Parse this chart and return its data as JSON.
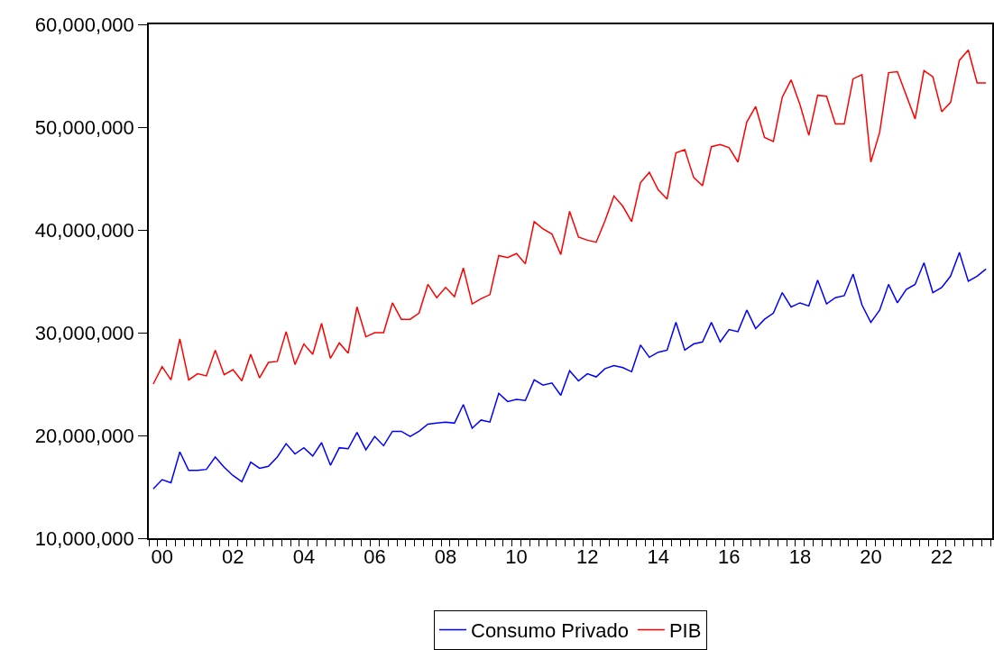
{
  "chart_data": {
    "type": "line",
    "legend": "bottom",
    "line_style": "solid",
    "categories": [
      null,
      "00",
      null,
      null,
      null,
      null,
      null,
      null,
      null,
      "02",
      null,
      null,
      null,
      null,
      null,
      null,
      null,
      "04",
      null,
      null,
      null,
      null,
      null,
      null,
      null,
      "06",
      null,
      null,
      null,
      null,
      null,
      null,
      null,
      "08",
      null,
      null,
      null,
      null,
      null,
      null,
      null,
      "10",
      null,
      null,
      null,
      null,
      null,
      null,
      null,
      "12",
      null,
      null,
      null,
      null,
      null,
      null,
      null,
      "14",
      null,
      null,
      null,
      null,
      null,
      null,
      null,
      "16",
      null,
      null,
      null,
      null,
      null,
      null,
      null,
      "18",
      null,
      null,
      null,
      null,
      null,
      null,
      null,
      "20",
      null,
      null,
      null,
      null,
      null,
      null,
      null,
      "22",
      null,
      null,
      null,
      null,
      null
    ],
    "series": [
      {
        "name": "Consumo Privado",
        "color": "#0000ff",
        "values": [
          14800000,
          15700000,
          15400000,
          18400000,
          16600000,
          16600000,
          16700000,
          17900000,
          16900000,
          16100000,
          15500000,
          17400000,
          16800000,
          17000000,
          17900000,
          19200000,
          18200000,
          18800000,
          18000000,
          19300000,
          17100000,
          18800000,
          18700000,
          20300000,
          18600000,
          19900000,
          19000000,
          20400000,
          20400000,
          19900000,
          20400000,
          21100000,
          21200000,
          21300000,
          21200000,
          23000000,
          20700000,
          21500000,
          21300000,
          24100000,
          23300000,
          23500000,
          23400000,
          25400000,
          24900000,
          25100000,
          23900000,
          26300000,
          25300000,
          26000000,
          25700000,
          26500000,
          26800000,
          26600000,
          26200000,
          28800000,
          27600000,
          28100000,
          28300000,
          31000000,
          28300000,
          28900000,
          29100000,
          31000000,
          29100000,
          30300000,
          30100000,
          32200000,
          30400000,
          31300000,
          31900000,
          33900000,
          32500000,
          32900000,
          32600000,
          35100000,
          32800000,
          33400000,
          33600000,
          35700000,
          32700000,
          31000000,
          32200000,
          34700000,
          32900000,
          34200000,
          34700000,
          36800000,
          33900000,
          34400000,
          35500000,
          37800000,
          35000000,
          35500000,
          36200000
        ]
      },
      {
        "name": "PIB",
        "color": "#ff0000",
        "values": [
          25000000,
          26700000,
          25400000,
          29400000,
          25400000,
          26000000,
          25800000,
          28300000,
          25900000,
          26400000,
          25300000,
          27900000,
          25600000,
          27100000,
          27200000,
          30100000,
          26900000,
          28900000,
          27900000,
          30900000,
          27500000,
          29000000,
          28000000,
          32500000,
          29600000,
          30000000,
          30000000,
          32900000,
          31300000,
          31300000,
          31900000,
          34700000,
          33400000,
          34400000,
          33500000,
          36300000,
          32800000,
          33300000,
          33700000,
          37500000,
          37300000,
          37700000,
          36700000,
          40800000,
          40100000,
          39600000,
          37600000,
          41800000,
          39300000,
          39000000,
          38800000,
          40900000,
          43300000,
          42300000,
          40800000,
          44600000,
          45600000,
          43900000,
          43000000,
          47500000,
          47800000,
          45100000,
          44300000,
          48100000,
          48300000,
          48000000,
          46600000,
          50500000,
          52000000,
          49000000,
          48600000,
          52900000,
          54600000,
          52200000,
          49200000,
          53100000,
          53000000,
          50300000,
          50300000,
          54700000,
          55100000,
          46600000,
          49500000,
          55300000,
          55400000,
          53100000,
          50800000,
          55500000,
          54900000,
          51500000,
          52400000,
          56500000,
          57500000,
          54300000,
          54300000
        ]
      }
    ],
    "ylim": [
      10000000,
      60000000
    ],
    "yticks": [
      {
        "value": 10000000,
        "label": "10,000,000"
      },
      {
        "value": 20000000,
        "label": "20,000,000"
      },
      {
        "value": 30000000,
        "label": "30,000,000"
      },
      {
        "value": 40000000,
        "label": "40,000,000"
      },
      {
        "value": 50000000,
        "label": "50,000,000"
      },
      {
        "value": 60000000,
        "label": "60,000,000"
      }
    ]
  }
}
